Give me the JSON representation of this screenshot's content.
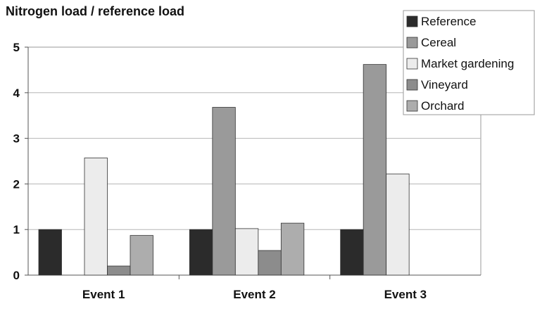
{
  "chart_data": {
    "type": "bar",
    "title": "Nitrogen load / reference load",
    "xlabel": "",
    "ylabel": "",
    "categories": [
      "Event 1",
      "Event 2",
      "Event 3"
    ],
    "ylim": [
      0,
      5
    ],
    "yticks": [
      0,
      1,
      2,
      3,
      4,
      5
    ],
    "grid": true,
    "legend_position": "top-right",
    "series": [
      {
        "name": "Reference",
        "color": "#2b2b2b",
        "values": [
          1.0,
          1.0,
          1.0
        ]
      },
      {
        "name": "Cereal",
        "color": "#9a9a9a",
        "values": [
          null,
          3.68,
          4.62
        ]
      },
      {
        "name": "Market gardening",
        "color": "#ececec",
        "values": [
          2.57,
          1.02,
          2.22
        ]
      },
      {
        "name": "Vineyard",
        "color": "#8c8c8c",
        "values": [
          0.2,
          0.54,
          null
        ]
      },
      {
        "name": "Orchard",
        "color": "#adadad",
        "values": [
          0.87,
          1.14,
          null
        ]
      }
    ]
  }
}
